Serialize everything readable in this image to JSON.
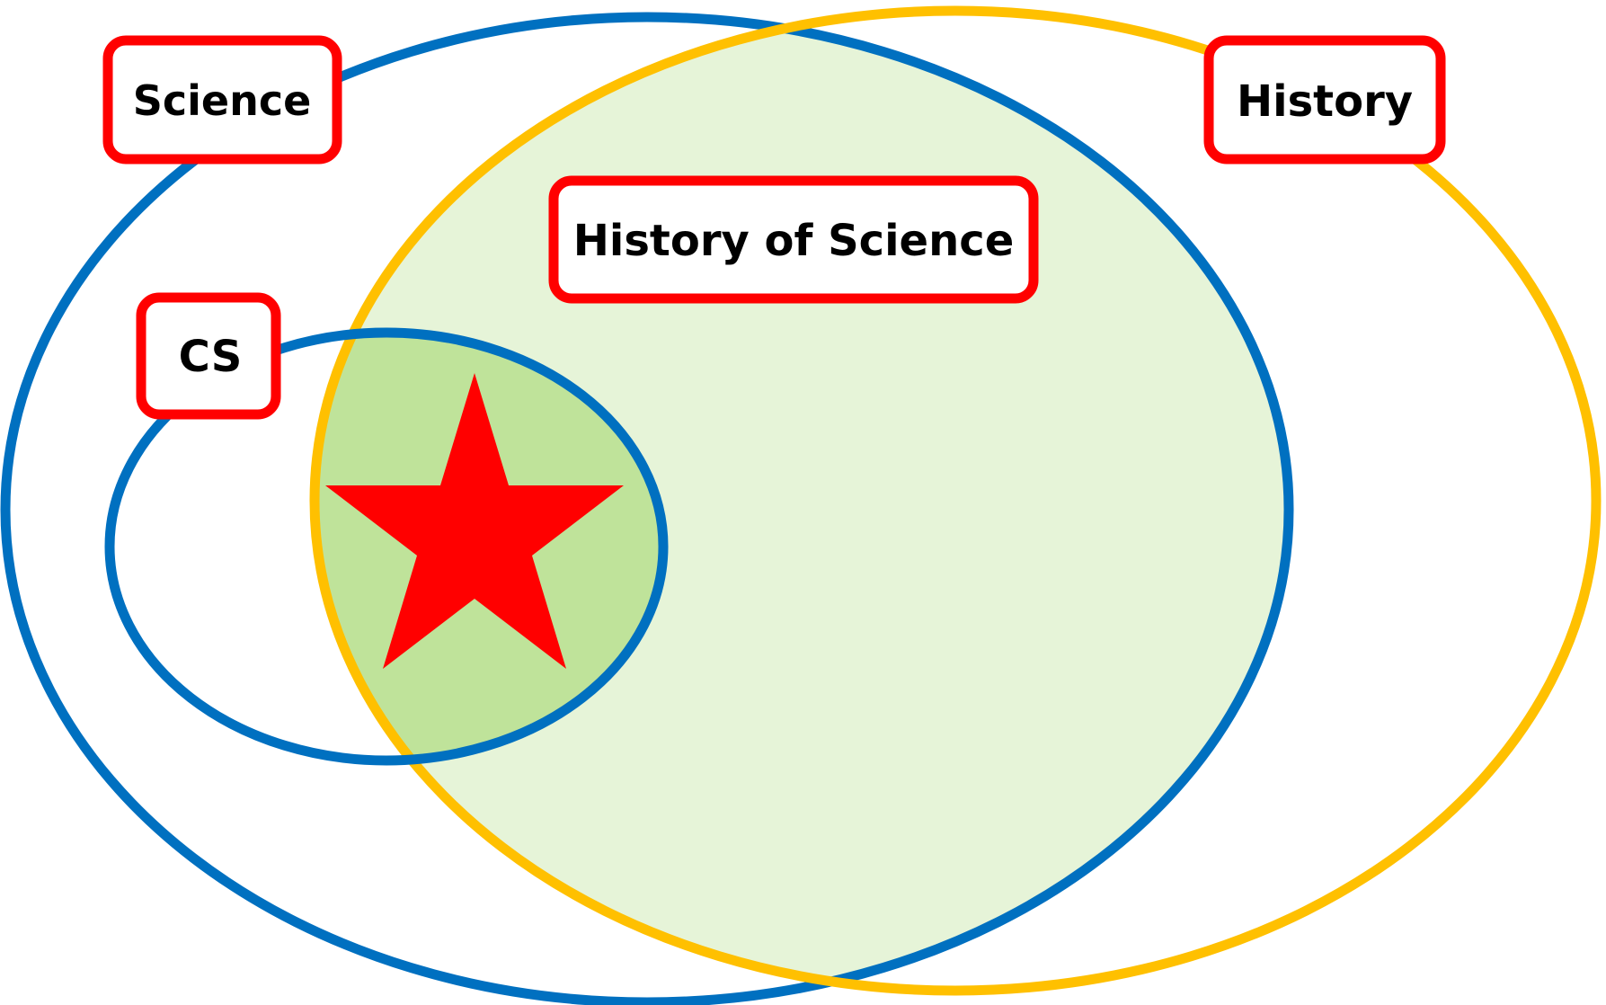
{
  "diagram": {
    "labels": {
      "science": "Science",
      "history": "History",
      "history_of_science": "History of Science",
      "cs": "CS"
    },
    "colors": {
      "science_outline": "#0070C0",
      "history_outline": "#FFC000",
      "cs_outline": "#0070C0",
      "overlap_fill": "#E6F4D8",
      "cs_overlap_fill": "#BFE39A",
      "label_border": "#FF0000",
      "star": "#FF0000",
      "text": "#000000"
    }
  }
}
